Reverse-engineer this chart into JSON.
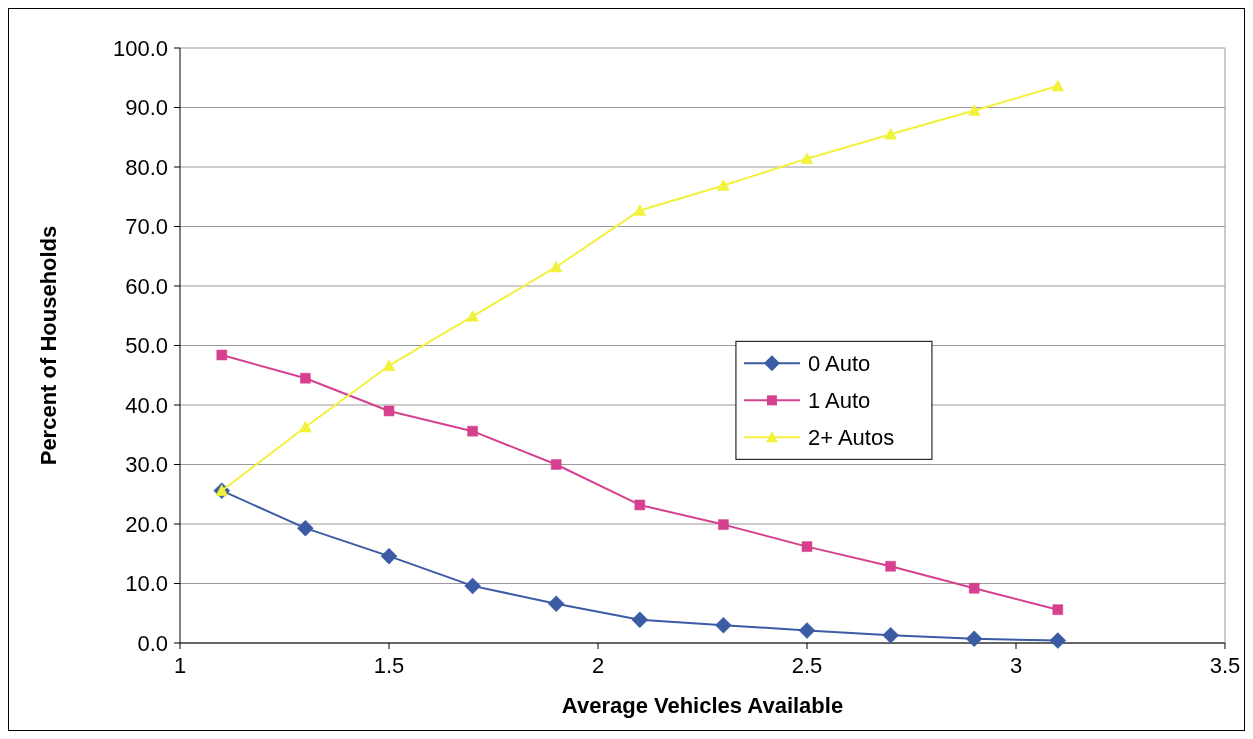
{
  "chart_data": {
    "type": "line",
    "xlabel": "Average Vehicles Available",
    "ylabel": "Percent of Households",
    "x": [
      1.1,
      1.3,
      1.5,
      1.7,
      1.9,
      2.1,
      2.3,
      2.5,
      2.7,
      2.9,
      3.1
    ],
    "series": [
      {
        "name": "0 Auto",
        "color": "#3b5ba5",
        "marker": "diamond",
        "values": [
          25.6,
          19.3,
          14.6,
          9.6,
          6.6,
          3.9,
          3.0,
          2.1,
          1.3,
          0.7,
          0.4
        ]
      },
      {
        "name": "1 Auto",
        "color": "#d6418f",
        "marker": "square",
        "values": [
          48.4,
          44.5,
          39.0,
          35.6,
          30.0,
          23.2,
          19.9,
          16.2,
          12.9,
          9.2,
          5.6
        ]
      },
      {
        "name": "2+ Autos",
        "color": "#f2f23c",
        "marker": "triangle",
        "values": [
          25.6,
          36.3,
          46.6,
          54.9,
          63.2,
          72.7,
          76.9,
          81.4,
          85.5,
          89.5,
          93.6
        ]
      }
    ],
    "xlim": [
      1,
      3.5
    ],
    "xticks": [
      1,
      1.5,
      2,
      2.5,
      3,
      3.5
    ],
    "ylim": [
      0,
      100
    ],
    "yticks": [
      {
        "value": 0,
        "label": "0.0"
      },
      {
        "value": 10,
        "label": "10.0"
      },
      {
        "value": 20,
        "label": "20.0"
      },
      {
        "value": 30,
        "label": "30.0"
      },
      {
        "value": 40,
        "label": "40.0"
      },
      {
        "value": 50,
        "label": "50.0"
      },
      {
        "value": 60,
        "label": "60.0"
      },
      {
        "value": 70,
        "label": "70.0"
      },
      {
        "value": 80,
        "label": "80.0"
      },
      {
        "value": 90,
        "label": "90.0"
      },
      {
        "value": 100,
        "label": "100.0"
      }
    ],
    "grid": "y",
    "legend": "right",
    "line_style": "solid"
  }
}
